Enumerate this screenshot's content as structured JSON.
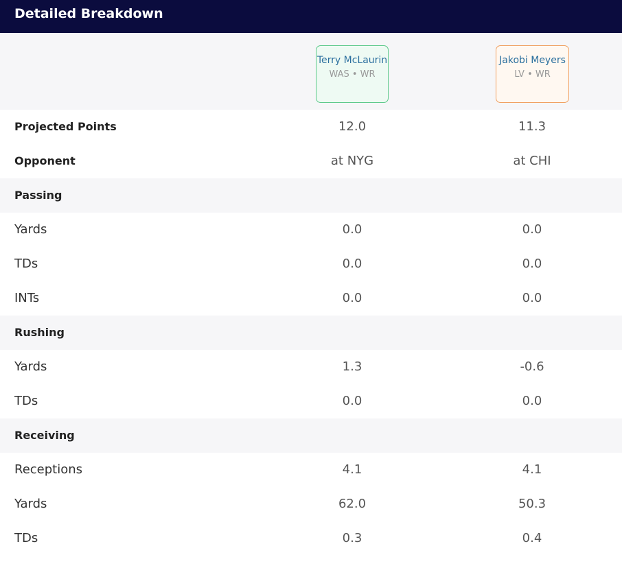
{
  "header": {
    "title": "Detailed Breakdown"
  },
  "players": [
    {
      "name": "Terry McLaurin",
      "meta": "WAS • WR"
    },
    {
      "name": "Jakobi Meyers",
      "meta": "LV • WR"
    }
  ],
  "summary": [
    {
      "label": "Projected Points",
      "values": [
        "12.0",
        "11.3"
      ]
    },
    {
      "label": "Opponent",
      "values": [
        "at NYG",
        "at CHI"
      ]
    }
  ],
  "sections": [
    {
      "title": "Passing",
      "rows": [
        {
          "label": "Yards",
          "values": [
            "0.0",
            "0.0"
          ]
        },
        {
          "label": "TDs",
          "values": [
            "0.0",
            "0.0"
          ]
        },
        {
          "label": "INTs",
          "values": [
            "0.0",
            "0.0"
          ]
        }
      ]
    },
    {
      "title": "Rushing",
      "rows": [
        {
          "label": "Yards",
          "values": [
            "1.3",
            "-0.6"
          ]
        },
        {
          "label": "TDs",
          "values": [
            "0.0",
            "0.0"
          ]
        }
      ]
    },
    {
      "title": "Receiving",
      "rows": [
        {
          "label": "Receptions",
          "values": [
            "4.1",
            "4.1"
          ]
        },
        {
          "label": "Yards",
          "values": [
            "62.0",
            "50.3"
          ]
        },
        {
          "label": "TDs",
          "values": [
            "0.3",
            "0.4"
          ]
        }
      ]
    }
  ]
}
